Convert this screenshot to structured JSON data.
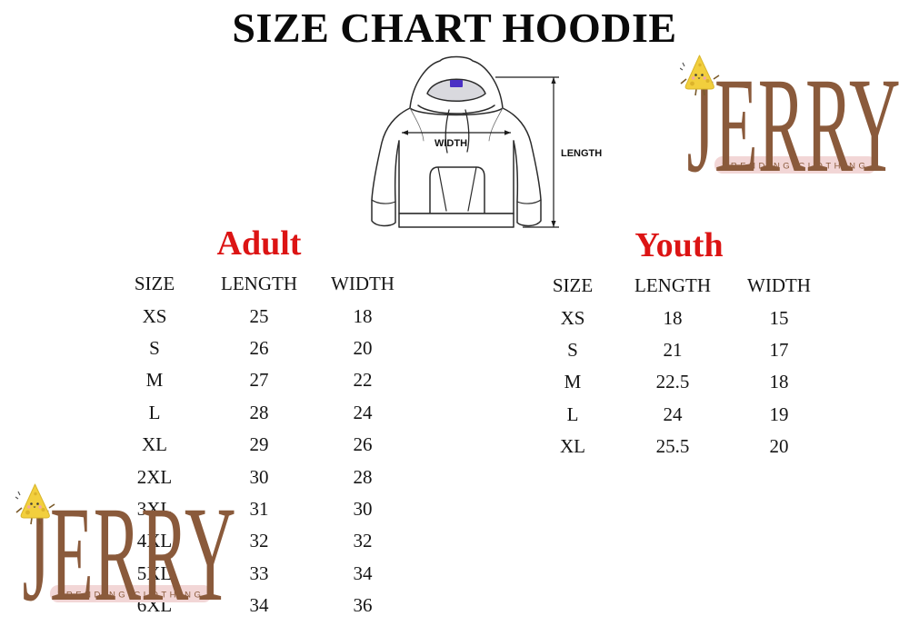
{
  "title": "SIZE CHART HOODIE",
  "diagram": {
    "width_label": "WIDTH",
    "length_label": "LENGTH"
  },
  "brand": {
    "name": "JERRY",
    "tagline": "TRENDING CLOTHING"
  },
  "tables": {
    "adult": {
      "heading": "Adult",
      "columns": [
        "SIZE",
        "LENGTH",
        "WIDTH"
      ],
      "rows": [
        [
          "XS",
          "25",
          "18"
        ],
        [
          "S",
          "26",
          "20"
        ],
        [
          "M",
          "27",
          "22"
        ],
        [
          "L",
          "28",
          "24"
        ],
        [
          "XL",
          "29",
          "26"
        ],
        [
          "2XL",
          "30",
          "28"
        ],
        [
          "3XL",
          "31",
          "30"
        ],
        [
          "4XL",
          "32",
          "32"
        ],
        [
          "5XL",
          "33",
          "34"
        ],
        [
          "6XL",
          "34",
          "36"
        ]
      ]
    },
    "youth": {
      "heading": "Youth",
      "columns": [
        "SIZE",
        "LENGTH",
        "WIDTH"
      ],
      "rows": [
        [
          "XS",
          "18",
          "15"
        ],
        [
          "S",
          "21",
          "17"
        ],
        [
          "M",
          "22.5",
          "18"
        ],
        [
          "L",
          "24",
          "19"
        ],
        [
          "XL",
          "25.5",
          "20"
        ]
      ]
    }
  },
  "colors": {
    "accent_red": "#dc1414",
    "logo_brown": "#8a5a3b",
    "tagline_bg": "#f2d6d6",
    "cheese_yellow": "#f2cf3d",
    "hood_lining_gray": "#d9d9de",
    "hood_tag_purple": "#4a30c4",
    "text_black": "#151515"
  }
}
